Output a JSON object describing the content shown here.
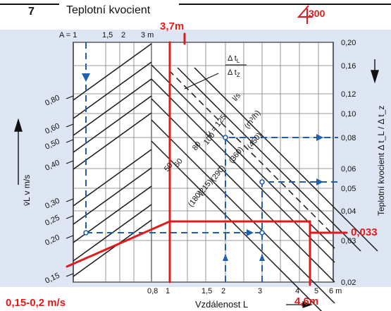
{
  "header": {
    "title": "Teplotní kvocient",
    "number": "7"
  },
  "chart_data": {
    "type": "line",
    "x_axis": {
      "label": "Vzdálenost L",
      "ticks": [
        "0,8",
        "1",
        "1,5",
        "2",
        "3",
        "4",
        "5",
        "6 m"
      ],
      "top_ticks": [
        "A = 1",
        "1,5",
        "2",
        "3 m"
      ]
    },
    "y_axis_right": {
      "label": "Teplotní kvocient Δ t_L / Δ t_z",
      "ticks": [
        "0,20",
        "0,16",
        "0,12",
        "0,10",
        "0,08",
        "0,06",
        "0,05",
        "0,04",
        "0,03",
        "0,02"
      ]
    },
    "y_axis_left": {
      "label": "v̄L v m/s",
      "ticks": [
        "0,80",
        "0,60",
        "0,50",
        "0,40",
        "0,30",
        "0,25",
        "0,20",
        "0,15"
      ]
    },
    "formula": {
      "num": "Δ t",
      "num_sub": "L",
      "den": "Δ t",
      "den_sub": "Z"
    },
    "flow_labels": {
      "prefix": "V̇ = 125",
      "unit_ls": "l/s",
      "unit_m3h": "(m³/h)",
      "items": [
        "100",
        "80",
        "60",
        "50",
        "(450)",
        "(360)",
        "(290)",
        "(215)",
        "(180)"
      ]
    }
  },
  "annotations": {
    "distance_a": "3,7m",
    "distance_l": "4,6m",
    "quotient": "0,033",
    "velocity": "0,15-0,2 m/s",
    "handwritten": "300"
  },
  "colors": {
    "annotation_red": "#e01b1b",
    "guide_blue": "#1f5fad",
    "grid": "#7a7a7a"
  }
}
